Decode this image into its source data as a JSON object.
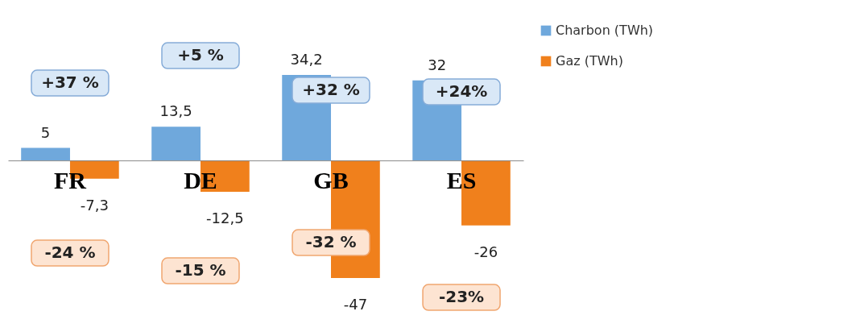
{
  "chart_data": {
    "type": "bar",
    "categories": [
      "FR",
      "DE",
      "GB",
      "ES"
    ],
    "series": [
      {
        "name": "Charbon (TWh)",
        "color": "#6fa8dc",
        "values": [
          5,
          13.5,
          34.2,
          32
        ],
        "value_labels": [
          "5",
          "13,5",
          "34,2",
          "32"
        ]
      },
      {
        "name": "Gaz (TWh)",
        "color": "#f0801c",
        "values": [
          -7.3,
          -12.5,
          -47,
          -26
        ],
        "value_labels": [
          "-7,3",
          "-12,5",
          "-47",
          "-26"
        ]
      }
    ],
    "annotations": [
      "+37 %",
      "+5 %",
      "+32 %",
      "+24%",
      "-24 %",
      "-15 %",
      "-32 %",
      "-23%"
    ],
    "grid": false,
    "legend": "right"
  }
}
